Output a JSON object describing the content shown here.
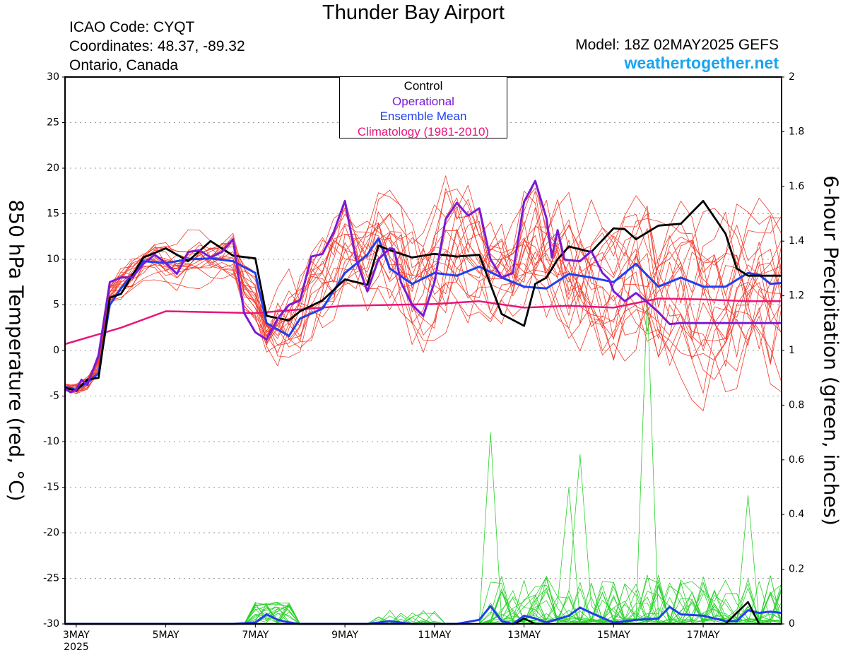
{
  "header": {
    "title": "Thunder Bay Airport",
    "icao": "ICAO Code: CYQT",
    "coordinates": "Coordinates: 48.37, -89.32",
    "region": "Ontario, Canada",
    "model": "Model: 18Z 02MAY2025 GEFS",
    "site": "weathertogether.net"
  },
  "legend": {
    "control": "Control",
    "operational": "Operational",
    "ensemble_mean": "Ensemble Mean",
    "climatology": "Climatology (1981-2010)"
  },
  "axes": {
    "left_label": "850 hPa Temperature (red, °C)",
    "right_label": "6-hour Precipitation (green, inches)",
    "year": "2025"
  },
  "colors": {
    "control": "#000000",
    "operational": "#7a1ad6",
    "ensemble_mean": "#1f3ff0",
    "climatology": "#e8157a",
    "members": "#f03a2a",
    "precip": "#2ad12a",
    "site": "#1aa3f0"
  },
  "chart_data": {
    "type": "line",
    "x_unit": "days after 00Z 3 May 2025",
    "x_range": [
      -0.25,
      15.75
    ],
    "x_ticks": [
      {
        "x": 0,
        "label": "3MAY"
      },
      {
        "x": 2,
        "label": "5MAY"
      },
      {
        "x": 4,
        "label": "7MAY"
      },
      {
        "x": 6,
        "label": "9MAY"
      },
      {
        "x": 8,
        "label": "11MAY"
      },
      {
        "x": 10,
        "label": "13MAY"
      },
      {
        "x": 12,
        "label": "15MAY"
      },
      {
        "x": 14,
        "label": "17MAY"
      }
    ],
    "y_left": {
      "range": [
        -30,
        30
      ],
      "ticks": [
        30,
        25,
        20,
        15,
        10,
        5,
        0,
        -5,
        -10,
        -15,
        -20,
        -25,
        -30
      ]
    },
    "y_right": {
      "range": [
        0,
        2
      ],
      "ticks": [
        "2",
        "1.8",
        "1.6",
        "1.4",
        "1.2",
        "1",
        "0.8",
        "0.6",
        "0.4",
        "0.2",
        "0"
      ]
    },
    "grid": true,
    "series": [
      {
        "name": "Operational",
        "axis": "left",
        "x": [
          -0.25,
          -0.12,
          0,
          0.12,
          0.25,
          0.5,
          0.75,
          1,
          1.25,
          1.5,
          1.75,
          2,
          2.25,
          2.5,
          2.75,
          3,
          3.25,
          3.5,
          3.75,
          4,
          4.25,
          4.5,
          4.75,
          5,
          5.25,
          5.5,
          5.75,
          6,
          6.25,
          6.5,
          6.75,
          7,
          7.1,
          7.25,
          7.5,
          7.75,
          8,
          8.25,
          8.5,
          8.75,
          9,
          9.25,
          9.5,
          9.75,
          10,
          10.25,
          10.5,
          10.62,
          10.75,
          10.9,
          11,
          11.25,
          11.5,
          11.75,
          11.9,
          12,
          12.25,
          12.5,
          12.75,
          13,
          13.25,
          13.5,
          13.75,
          14,
          14.25,
          14.5,
          14.75,
          15,
          15.25,
          15.5,
          15.75
        ],
        "y": [
          -4.2,
          -4.6,
          -4.3,
          -3.2,
          -3.8,
          -0.5,
          7.5,
          8.0,
          8.0,
          9.5,
          10.5,
          9.6,
          8.4,
          10.8,
          11.0,
          10.2,
          10.8,
          12.2,
          4.1,
          2.0,
          1.2,
          3.5,
          5.0,
          5.5,
          10.3,
          10.6,
          13.0,
          16.4,
          10.0,
          6.5,
          10.0,
          11.2,
          11.1,
          7.5,
          5.0,
          3.8,
          7.5,
          14.4,
          16.2,
          14.8,
          15.6,
          10.0,
          8.0,
          8.5,
          16.3,
          18.6,
          14.5,
          10.2,
          13.2,
          10.0,
          9.9,
          9.8,
          10.9,
          8.5,
          7.8,
          6.5,
          5.4,
          6.3,
          5.3,
          4.2,
          2.9,
          3.0,
          3.0,
          3.0,
          3.0,
          3.0,
          3.0,
          3.0,
          3.0,
          3.0,
          3.0
        ]
      },
      {
        "name": "Control",
        "axis": "left",
        "x": [
          -0.25,
          0,
          0.25,
          0.5,
          0.75,
          1,
          1.5,
          2,
          2.5,
          3,
          3.5,
          4,
          4.25,
          4.75,
          5,
          5.5,
          6,
          6.5,
          6.75,
          7,
          7.5,
          8,
          8.5,
          9,
          9.5,
          10,
          10.25,
          10.5,
          10.75,
          11,
          11.5,
          12,
          12.25,
          12.5,
          13,
          13.5,
          14,
          14.5,
          14.75,
          15,
          15.25,
          15.5,
          15.75
        ],
        "y": [
          -4.1,
          -4.4,
          -3.2,
          -3.0,
          5.8,
          6.2,
          10.2,
          11.2,
          9.8,
          12.0,
          10.4,
          10.1,
          3.8,
          3.3,
          4.3,
          5.5,
          7.8,
          7.2,
          11.5,
          11.0,
          10.2,
          10.6,
          10.3,
          10.5,
          4.0,
          2.7,
          7.3,
          8.0,
          10.0,
          11.4,
          10.8,
          13.4,
          13.3,
          12.2,
          13.7,
          13.9,
          16.4,
          12.8,
          9.0,
          8.2,
          8.2,
          8.2,
          8.2
        ]
      },
      {
        "name": "Ensemble Mean",
        "axis": "left",
        "x": [
          -0.25,
          0,
          0.25,
          0.5,
          0.75,
          1,
          1.5,
          2,
          2.5,
          3,
          3.5,
          4,
          4.25,
          4.75,
          5,
          5.5,
          6,
          6.5,
          6.75,
          7,
          7.5,
          8,
          8.5,
          9,
          9.5,
          10,
          10.5,
          11,
          11.5,
          12,
          12.5,
          13,
          13.5,
          14,
          14.5,
          15,
          15.25,
          15.5,
          15.75
        ],
        "y": [
          -4.0,
          -4.3,
          -3.5,
          -2.5,
          5.0,
          6.8,
          9.8,
          9.6,
          10.0,
          10.1,
          9.8,
          8.5,
          3.0,
          1.6,
          3.5,
          4.6,
          8.5,
          10.5,
          12.3,
          9.0,
          7.3,
          8.5,
          8.2,
          9.2,
          8.0,
          7.0,
          6.8,
          8.4,
          8.0,
          7.5,
          9.5,
          7.0,
          8.0,
          7.0,
          7.0,
          8.5,
          8.3,
          7.3,
          7.4
        ]
      },
      {
        "name": "Climatology (1981-2010)",
        "axis": "left",
        "x": [
          -0.25,
          1,
          2,
          4,
          6,
          8,
          9,
          10,
          11,
          12,
          13,
          14,
          15,
          15.75
        ],
        "y": [
          0.7,
          2.5,
          4.3,
          4.1,
          4.9,
          5.1,
          5.4,
          4.7,
          4.9,
          4.7,
          5.7,
          5.6,
          5.4,
          5.4
        ]
      },
      {
        "name": "Ensemble Mean precipitation",
        "axis": "right",
        "x": [
          -0.25,
          0,
          0.5,
          1,
          1.5,
          2,
          2.5,
          3,
          3.5,
          4,
          4.25,
          4.5,
          4.75,
          5,
          5.5,
          6,
          6.5,
          7,
          7.5,
          8,
          8.5,
          9,
          9.25,
          9.5,
          9.75,
          10,
          10.25,
          10.5,
          11,
          11.25,
          11.5,
          12,
          12.5,
          13,
          13.25,
          13.5,
          14,
          14.5,
          14.75,
          15,
          15.25,
          15.5,
          15.75
        ],
        "y": [
          0,
          0,
          0,
          0,
          0,
          0,
          0,
          0,
          0,
          0.005,
          0.035,
          0.015,
          0.005,
          0,
          0,
          0,
          0,
          0.01,
          0,
          0,
          0,
          0.015,
          0.065,
          0.01,
          0,
          0.03,
          0.02,
          0.005,
          0.03,
          0.06,
          0.04,
          0.005,
          0.015,
          0.02,
          0.062,
          0.035,
          0.03,
          0.01,
          0.01,
          0.05,
          0.04,
          0.045,
          0.04
        ]
      },
      {
        "name": "Control precipitation",
        "axis": "right",
        "x": [
          -0.25,
          9.8,
          10,
          10.25,
          14.5,
          14.75,
          15,
          15.25,
          15.75
        ],
        "y": [
          0,
          0,
          0.02,
          0,
          0,
          0.04,
          0.08,
          0,
          0
        ]
      }
    ]
  }
}
